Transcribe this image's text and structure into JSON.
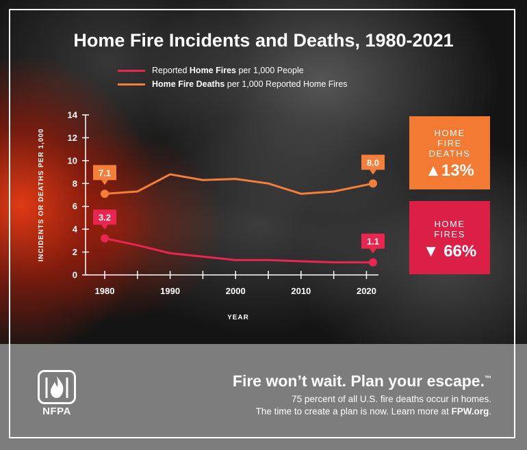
{
  "title": "Home Fire Incidents and Deaths, 1980-2021",
  "legend": [
    {
      "prefix": "Reported ",
      "bold": "Home Fires",
      "suffix": " per 1,000 People",
      "color": "#e8264f"
    },
    {
      "prefix": "",
      "bold": "Home Fire Deaths",
      "suffix": " per 1,000 Reported Home Fires",
      "color": "#f47f3a"
    }
  ],
  "stats": {
    "deaths": {
      "label": [
        "HOME",
        "FIRE",
        "DEATHS"
      ],
      "arrow": "▲",
      "value": "13%",
      "color": "#f27a33"
    },
    "fires": {
      "label": [
        "HOME",
        "FIRES"
      ],
      "arrow": "▼",
      "value": "66%",
      "color": "#dc1f45"
    }
  },
  "footer": {
    "tagline": "Fire won’t wait. Plan your escape.",
    "tm": "™",
    "line1": "75 percent of all U.S. fire deaths occur in homes.",
    "line2_prefix": "The time to create a plan is now. Learn more at ",
    "line2_link": "FPW.org",
    "line2_suffix": ".",
    "logo_text": "NFPA"
  },
  "chart_data": {
    "type": "line",
    "xlabel": "YEAR",
    "ylabel": "INCIDENTS OR DEATHS PER 1,000",
    "xlim": [
      1980,
      2021
    ],
    "ylim": [
      0,
      14
    ],
    "x_ticks": [
      1980,
      1990,
      2000,
      2010,
      2020
    ],
    "y_ticks": [
      0,
      2,
      4,
      6,
      8,
      10,
      12,
      14
    ],
    "series": [
      {
        "name": "Reported Home Fires per 1,000 People",
        "color": "#e8264f",
        "x": [
          1980,
          1985,
          1990,
          1995,
          2000,
          2005,
          2010,
          2015,
          2021
        ],
        "y": [
          3.2,
          2.6,
          1.9,
          1.6,
          1.3,
          1.3,
          1.2,
          1.1,
          1.1
        ],
        "labeled_points": [
          {
            "x": 1980,
            "y": 3.2,
            "label": "3.2"
          },
          {
            "x": 2021,
            "y": 1.1,
            "label": "1.1"
          }
        ]
      },
      {
        "name": "Home Fire Deaths per 1,000 Reported Home Fires",
        "color": "#f47f3a",
        "x": [
          1980,
          1985,
          1990,
          1995,
          2000,
          2005,
          2010,
          2015,
          2021
        ],
        "y": [
          7.1,
          7.3,
          8.8,
          8.3,
          8.4,
          8.0,
          7.1,
          7.3,
          8.0
        ],
        "labeled_points": [
          {
            "x": 1980,
            "y": 7.1,
            "label": "7.1"
          },
          {
            "x": 2021,
            "y": 8.0,
            "label": "8.0"
          }
        ]
      }
    ]
  }
}
